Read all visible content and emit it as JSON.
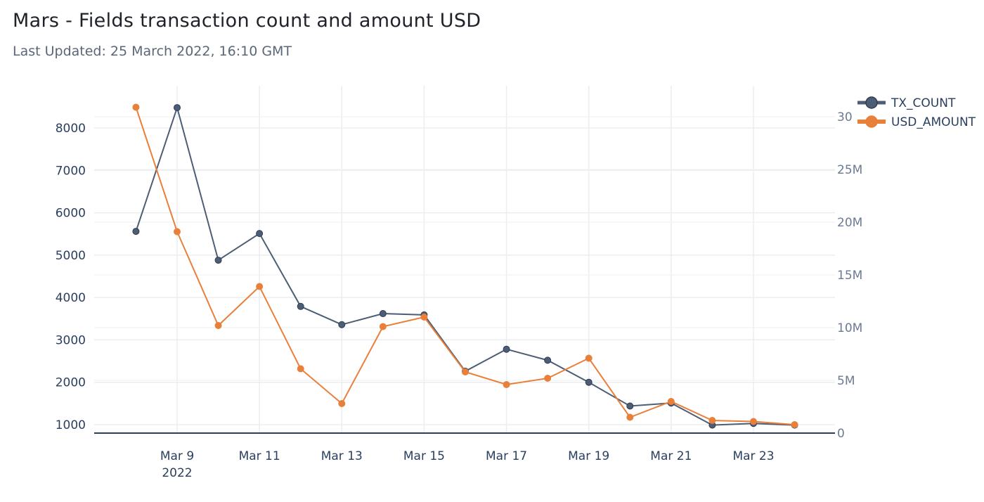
{
  "header": {
    "title": "Mars - Fields transaction count and amount USD",
    "subtitle": "Last Updated: 25 March 2022, 16:10 GMT"
  },
  "chart_data": {
    "type": "line",
    "x": [
      "2022-03-08",
      "2022-03-09",
      "2022-03-10",
      "2022-03-11",
      "2022-03-12",
      "2022-03-13",
      "2022-03-14",
      "2022-03-15",
      "2022-03-16",
      "2022-03-17",
      "2022-03-18",
      "2022-03-19",
      "2022-03-20",
      "2022-03-21",
      "2022-03-22",
      "2022-03-23",
      "2022-03-24"
    ],
    "x_ticks": [
      "Mar 9",
      "Mar 11",
      "Mar 13",
      "Mar 15",
      "Mar 17",
      "Mar 19",
      "Mar 21",
      "Mar 23"
    ],
    "x_year_label": "2022",
    "series": [
      {
        "name": "TX_COUNT",
        "axis": "left",
        "color": "#4c5e75",
        "values": [
          5560,
          8480,
          4880,
          5510,
          3790,
          3360,
          3620,
          3590,
          2260,
          2780,
          2520,
          2000,
          1440,
          1510,
          990,
          1030,
          990
        ]
      },
      {
        "name": "USD_AMOUNT",
        "axis": "right",
        "color": "#e8803b",
        "values": [
          30900000,
          19100000,
          10200000,
          13900000,
          6100000,
          2800000,
          10100000,
          11000000,
          5800000,
          4600000,
          5200000,
          7100000,
          1500000,
          3000000,
          1200000,
          1100000,
          800000
        ]
      }
    ],
    "y_left": {
      "range": [
        800,
        8800
      ],
      "ticks": [
        "1000",
        "2000",
        "3000",
        "4000",
        "5000",
        "6000",
        "7000",
        "8000"
      ],
      "tick_values": [
        1000,
        2000,
        3000,
        4000,
        5000,
        6000,
        7000,
        8000
      ]
    },
    "y_right": {
      "range": [
        0,
        33000000
      ],
      "ticks": [
        "0",
        "5M",
        "10M",
        "15M",
        "20M",
        "25M",
        "30M"
      ],
      "tick_values": [
        0,
        5000000,
        10000000,
        15000000,
        20000000,
        25000000,
        30000000
      ]
    },
    "legend_placement": "top-right",
    "grid": true
  }
}
